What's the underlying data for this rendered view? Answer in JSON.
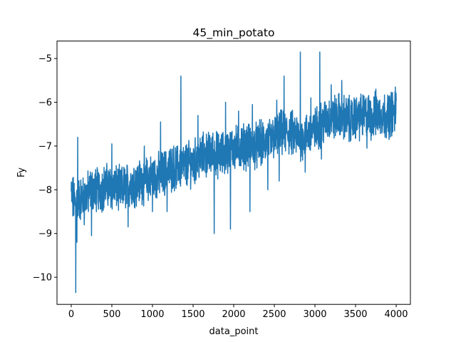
{
  "chart_data": {
    "type": "line",
    "title": "45_min_potato",
    "xlabel": "data_point",
    "ylabel": "Fy",
    "xlim": [
      -175,
      4175
    ],
    "ylim": [
      -10.62,
      -4.6
    ],
    "grid": false,
    "legend": "none",
    "x_ticks": [
      0,
      500,
      1000,
      1500,
      2000,
      2500,
      3000,
      3500,
      4000
    ],
    "x_tick_labels": [
      "0",
      "500",
      "1000",
      "1500",
      "2000",
      "2500",
      "3000",
      "3500",
      "4000"
    ],
    "y_ticks": [
      -10,
      -9,
      -8,
      -7,
      -6,
      -5
    ],
    "y_tick_labels": [
      "−10",
      "−9",
      "−8",
      "−7",
      "−6",
      "−5"
    ],
    "series": [
      {
        "color": "#1f77b4",
        "x": [
          0,
          50,
          100,
          150,
          200,
          250,
          300,
          350,
          400,
          450,
          500,
          550,
          600,
          650,
          700,
          750,
          800,
          850,
          900,
          950,
          1000,
          1050,
          1100,
          1150,
          1200,
          1250,
          1300,
          1350,
          1400,
          1450,
          1500,
          1550,
          1600,
          1650,
          1700,
          1750,
          1800,
          1850,
          1900,
          1950,
          2000,
          2050,
          2100,
          2150,
          2200,
          2250,
          2300,
          2350,
          2400,
          2450,
          2500,
          2550,
          2600,
          2650,
          2700,
          2750,
          2800,
          2850,
          2900,
          2950,
          3000,
          3050,
          3100,
          3150,
          3200,
          3250,
          3300,
          3350,
          3400,
          3450,
          3500,
          3550,
          3600,
          3650,
          3700,
          3750,
          3800,
          3850,
          3900,
          3950,
          4000
        ],
        "y": [
          -8.1,
          -8.3,
          -8.2,
          -8.2,
          -8.1,
          -8.0,
          -8.0,
          -8.0,
          -7.95,
          -7.9,
          -7.95,
          -7.95,
          -8.0,
          -7.95,
          -7.9,
          -7.85,
          -7.85,
          -7.8,
          -7.8,
          -7.75,
          -7.7,
          -7.7,
          -7.65,
          -7.6,
          -7.55,
          -7.5,
          -7.5,
          -7.45,
          -7.45,
          -7.4,
          -7.4,
          -7.3,
          -7.25,
          -7.2,
          -7.2,
          -7.15,
          -7.2,
          -7.2,
          -7.15,
          -7.1,
          -7.05,
          -7.05,
          -7.0,
          -7.0,
          -7.0,
          -7.0,
          -7.0,
          -6.95,
          -6.9,
          -6.9,
          -6.8,
          -6.75,
          -6.7,
          -6.7,
          -6.7,
          -6.75,
          -6.8,
          -6.8,
          -6.75,
          -6.7,
          -6.65,
          -6.55,
          -6.45,
          -6.4,
          -6.35,
          -6.35,
          -6.3,
          -6.35,
          -6.35,
          -6.4,
          -6.35,
          -6.35,
          -6.3,
          -6.3,
          -6.35,
          -6.3,
          -6.25,
          -6.3,
          -6.3,
          -6.25,
          -6.2
        ]
      }
    ],
    "spikes": [
      {
        "x": 20,
        "y": -8.6
      },
      {
        "x": 55,
        "y": -10.35
      },
      {
        "x": 70,
        "y": -9.2
      },
      {
        "x": 80,
        "y": -6.8
      },
      {
        "x": 160,
        "y": -8.8
      },
      {
        "x": 250,
        "y": -9.05
      },
      {
        "x": 500,
        "y": -6.95
      },
      {
        "x": 700,
        "y": -8.85
      },
      {
        "x": 900,
        "y": -7.0
      },
      {
        "x": 1000,
        "y": -8.5
      },
      {
        "x": 1100,
        "y": -6.45
      },
      {
        "x": 1180,
        "y": -8.5
      },
      {
        "x": 1350,
        "y": -5.4
      },
      {
        "x": 1560,
        "y": -6.3
      },
      {
        "x": 1760,
        "y": -9.0
      },
      {
        "x": 1900,
        "y": -6.0
      },
      {
        "x": 1960,
        "y": -8.9
      },
      {
        "x": 2060,
        "y": -6.2
      },
      {
        "x": 2200,
        "y": -8.5
      },
      {
        "x": 2230,
        "y": -6.05
      },
      {
        "x": 2320,
        "y": -6.4
      },
      {
        "x": 2420,
        "y": -8.0
      },
      {
        "x": 2530,
        "y": -5.95
      },
      {
        "x": 2560,
        "y": -7.8
      },
      {
        "x": 2620,
        "y": -5.4
      },
      {
        "x": 2820,
        "y": -4.85
      },
      {
        "x": 2880,
        "y": -7.6
      },
      {
        "x": 2950,
        "y": -5.9
      },
      {
        "x": 3060,
        "y": -4.85
      },
      {
        "x": 3080,
        "y": -7.3
      },
      {
        "x": 3200,
        "y": -5.6
      },
      {
        "x": 3330,
        "y": -5.5
      },
      {
        "x": 3420,
        "y": -6.9
      },
      {
        "x": 3560,
        "y": -5.9
      },
      {
        "x": 3640,
        "y": -7.05
      },
      {
        "x": 3750,
        "y": -5.7
      },
      {
        "x": 3920,
        "y": -5.85
      },
      {
        "x": 3990,
        "y": -5.65
      }
    ]
  }
}
